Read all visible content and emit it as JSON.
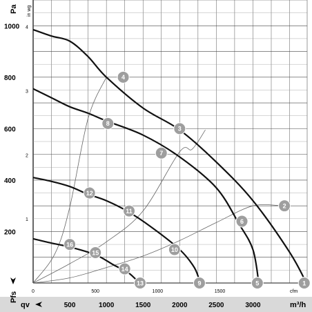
{
  "chart_data": {
    "type": "line",
    "title": "",
    "ylabel": "Pa",
    "ylabel_secondary": "in wg",
    "xlabel_bottom": "qv",
    "xlabel_bottom_unit": "m³/h",
    "xlabel_top_unit": "cfm",
    "ylabel_bottom_marker": "Pfs",
    "ylim": [
      0,
      1100
    ],
    "xlim_m3h": [
      0,
      3740
    ],
    "grid": true,
    "y_ticks_pa": [
      200,
      400,
      600,
      800,
      1000
    ],
    "y_ticks_inwg": [
      1,
      2,
      3,
      4
    ],
    "x_ticks_cfm": [
      0,
      500,
      1000,
      1500
    ],
    "x_ticks_m3h": [
      500,
      1000,
      1500,
      2000,
      2500,
      3000
    ],
    "series": [
      {
        "points": [
          [
            0,
            985
          ],
          [
            250,
            960
          ],
          [
            500,
            940
          ],
          [
            750,
            880
          ],
          [
            1000,
            800
          ],
          [
            1500,
            680
          ],
          [
            2000,
            595
          ],
          [
            2500,
            470
          ],
          [
            3000,
            320
          ],
          [
            3500,
            120
          ],
          [
            3730,
            0
          ]
        ]
      },
      {
        "points": [
          [
            0,
            755
          ],
          [
            250,
            720
          ],
          [
            500,
            685
          ],
          [
            750,
            660
          ],
          [
            1000,
            630
          ],
          [
            1500,
            575
          ],
          [
            2000,
            490
          ],
          [
            2500,
            370
          ],
          [
            2810,
            230
          ],
          [
            3000,
            130
          ],
          [
            3080,
            0
          ]
        ]
      },
      {
        "points": [
          [
            0,
            410
          ],
          [
            250,
            395
          ],
          [
            500,
            375
          ],
          [
            750,
            345
          ],
          [
            1000,
            320
          ],
          [
            1280,
            280
          ],
          [
            1600,
            220
          ],
          [
            2000,
            130
          ],
          [
            2200,
            60
          ],
          [
            2280,
            0
          ]
        ]
      },
      {
        "points": [
          [
            0,
            172
          ],
          [
            250,
            155
          ],
          [
            500,
            140
          ],
          [
            850,
            110
          ],
          [
            1100,
            70
          ],
          [
            1300,
            40
          ],
          [
            1450,
            0
          ]
        ]
      }
    ],
    "system_curves": [
      [
        [
          0,
          0
        ],
        [
          300,
          115
        ],
        [
          500,
          295
        ],
        [
          750,
          640
        ],
        [
          1000,
          800
        ]
      ],
      [
        [
          0,
          0
        ],
        [
          500,
          75
        ],
        [
          1000,
          160
        ],
        [
          1500,
          280
        ],
        [
          2000,
          510
        ],
        [
          2170,
          520
        ],
        [
          2350,
          595
        ]
      ],
      [
        [
          0,
          0
        ],
        [
          500,
          20
        ],
        [
          1000,
          60
        ],
        [
          1500,
          105
        ],
        [
          2000,
          165
        ],
        [
          2500,
          235
        ],
        [
          3000,
          300
        ],
        [
          3400,
          300
        ]
      ]
    ],
    "markers": [
      {
        "label": "1",
        "q": 3700,
        "p": 0
      },
      {
        "label": "2",
        "q": 3430,
        "p": 300
      },
      {
        "label": "3",
        "q": 2000,
        "p": 600
      },
      {
        "label": "4",
        "q": 1230,
        "p": 800
      },
      {
        "label": "5",
        "q": 3060,
        "p": 0
      },
      {
        "label": "6",
        "q": 2850,
        "p": 240
      },
      {
        "label": "7",
        "q": 1750,
        "p": 505
      },
      {
        "label": "8",
        "q": 1020,
        "p": 620
      },
      {
        "label": "9",
        "q": 2270,
        "p": 0
      },
      {
        "label": "10",
        "q": 1930,
        "p": 130
      },
      {
        "label": "11",
        "q": 1310,
        "p": 280
      },
      {
        "label": "12",
        "q": 770,
        "p": 350
      },
      {
        "label": "13",
        "q": 1460,
        "p": 0
      },
      {
        "label": "14",
        "q": 1250,
        "p": 55
      },
      {
        "label": "15",
        "q": 850,
        "p": 118
      },
      {
        "label": "16",
        "q": 500,
        "p": 150
      }
    ]
  }
}
